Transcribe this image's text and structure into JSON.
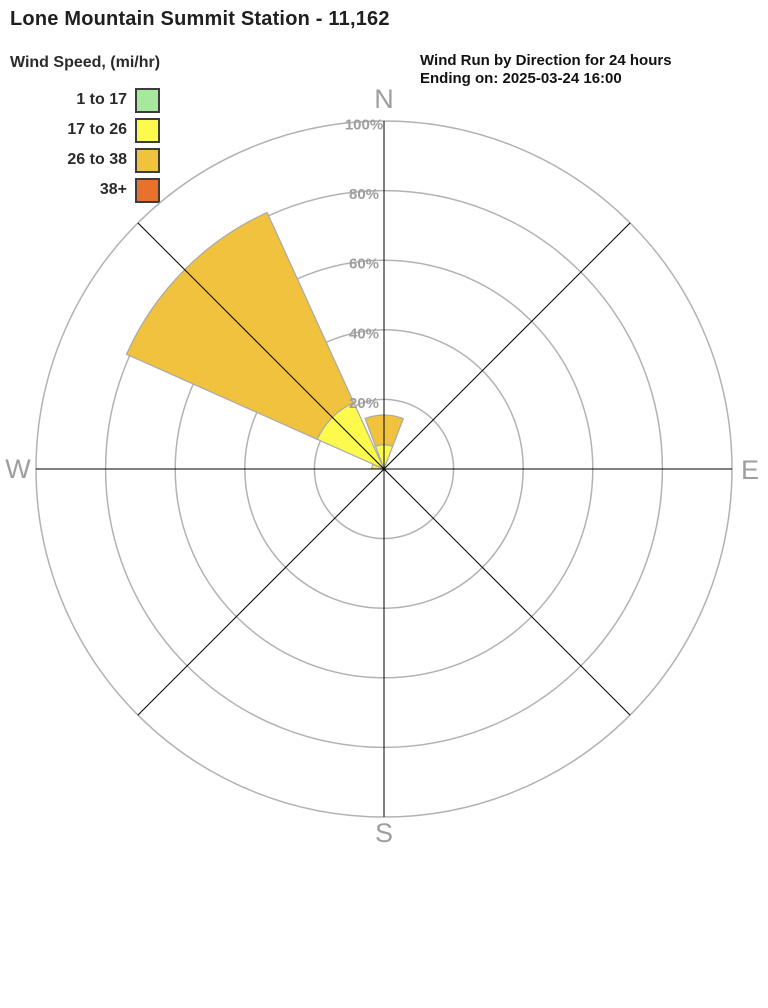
{
  "page": {
    "title": "Lone Mountain Summit Station - 11,162"
  },
  "chart_data": {
    "type": "wind_rose",
    "title": "Wind Run by Direction for 24 hours",
    "ending_on": "Ending on: 2025-03-24 16:00",
    "legend_title": "Wind Speed, (mi/hr)",
    "units": "mi/hr",
    "axis_max_pct": 100,
    "grid": true,
    "rings_pct": [
      20,
      40,
      60,
      80,
      100
    ],
    "ring_label_suffix": "%",
    "spoke_azimuths": [
      0,
      45,
      90,
      135
    ],
    "compass": [
      {
        "label": "N",
        "az": 0
      },
      {
        "label": "E",
        "az": 90
      },
      {
        "label": "S",
        "az": 180
      },
      {
        "label": "W",
        "az": 270
      }
    ],
    "bins": [
      {
        "label": "1 to 17",
        "color": "#a7e99c"
      },
      {
        "label": "17 to 26",
        "color": "#fbfa4d"
      },
      {
        "label": "26 to 38",
        "color": "#f0c23d"
      },
      {
        "label": "38+",
        "color": "#e8722c"
      }
    ],
    "petals": [
      {
        "direction": "NW",
        "start_deg": 294,
        "end_deg": 335.5,
        "segments": [
          {
            "bin": "17 to 26",
            "from_pct": 0,
            "to_pct": 21
          },
          {
            "bin": "26 to 38",
            "from_pct": 21,
            "to_pct": 81
          }
        ]
      },
      {
        "direction": "N",
        "start_deg": 339.5,
        "end_deg": 381,
        "segments": [
          {
            "bin": "17 to 26",
            "from_pct": 0,
            "to_pct": 7
          },
          {
            "bin": "26 to 38",
            "from_pct": 7,
            "to_pct": 15.5
          }
        ]
      },
      {
        "direction": "W",
        "start_deg": 272,
        "end_deg": 292,
        "segments": [
          {
            "bin": "17 to 26",
            "from_pct": 0,
            "to_pct": 3.5
          }
        ]
      }
    ],
    "totals_by_direction_pct": {
      "N": 15.5,
      "NE": 0,
      "E": 0,
      "SE": 0,
      "S": 0,
      "SW": 0,
      "W": 3.5,
      "NW": 81
    },
    "colors": {
      "grid_ring": "#b2b2b2",
      "spoke": "#000000",
      "labels": "#9e9e9e",
      "petal_outline": "#a9a9a9"
    }
  }
}
